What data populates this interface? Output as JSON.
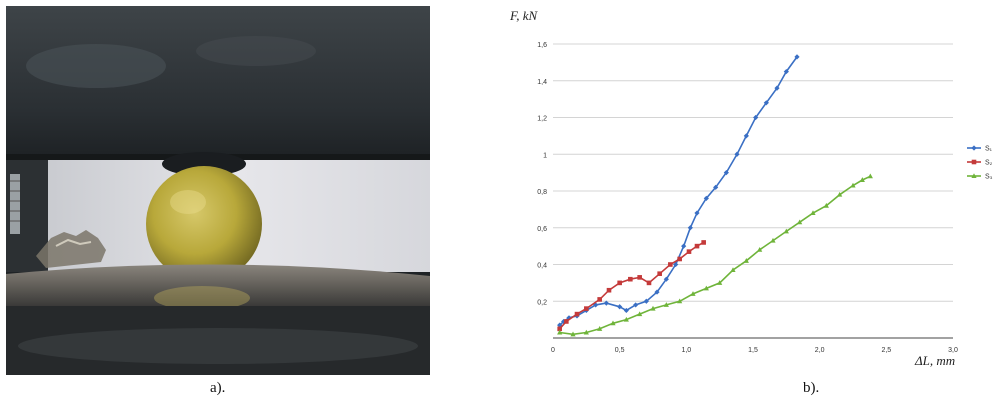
{
  "panel_labels": {
    "a": "a).",
    "b": "b)."
  },
  "chart_data": {
    "type": "line",
    "ylabel": "F, kN",
    "xlabel": "ΔL, mm",
    "xlim": [
      0,
      3.0
    ],
    "ylim": [
      0,
      1.6
    ],
    "xticks": [
      0,
      0.5,
      1.0,
      1.5,
      2.0,
      2.5,
      3.0
    ],
    "xtick_labels": [
      "0",
      "0,5",
      "1,0",
      "1,5",
      "2,0",
      "2,5",
      "3,0"
    ],
    "yticks": [
      0.2,
      0.4,
      0.6,
      0.8,
      1.0,
      1.2,
      1.4,
      1.6
    ],
    "ytick_labels": [
      "0,2",
      "0,4",
      "0,6",
      "0,8",
      "1",
      "1,2",
      "1,4",
      "1,6"
    ],
    "grid": "horizontal",
    "legend_position": "right",
    "series": [
      {
        "name": "S₁",
        "color": "#3a6fc4",
        "marker": "diamond",
        "points": [
          [
            0.05,
            0.07
          ],
          [
            0.08,
            0.09
          ],
          [
            0.12,
            0.11
          ],
          [
            0.18,
            0.12
          ],
          [
            0.25,
            0.15
          ],
          [
            0.32,
            0.18
          ],
          [
            0.4,
            0.19
          ],
          [
            0.5,
            0.17
          ],
          [
            0.55,
            0.15
          ],
          [
            0.62,
            0.18
          ],
          [
            0.7,
            0.2
          ],
          [
            0.78,
            0.25
          ],
          [
            0.85,
            0.32
          ],
          [
            0.92,
            0.4
          ],
          [
            0.98,
            0.5
          ],
          [
            1.03,
            0.6
          ],
          [
            1.08,
            0.68
          ],
          [
            1.15,
            0.76
          ],
          [
            1.22,
            0.82
          ],
          [
            1.3,
            0.9
          ],
          [
            1.38,
            1.0
          ],
          [
            1.45,
            1.1
          ],
          [
            1.52,
            1.2
          ],
          [
            1.6,
            1.28
          ],
          [
            1.68,
            1.36
          ],
          [
            1.75,
            1.45
          ],
          [
            1.83,
            1.53
          ]
        ]
      },
      {
        "name": "S₂",
        "color": "#c43a3a",
        "marker": "square",
        "points": [
          [
            0.05,
            0.05
          ],
          [
            0.1,
            0.09
          ],
          [
            0.18,
            0.13
          ],
          [
            0.25,
            0.16
          ],
          [
            0.35,
            0.21
          ],
          [
            0.42,
            0.26
          ],
          [
            0.5,
            0.3
          ],
          [
            0.58,
            0.32
          ],
          [
            0.65,
            0.33
          ],
          [
            0.72,
            0.3
          ],
          [
            0.8,
            0.35
          ],
          [
            0.88,
            0.4
          ],
          [
            0.95,
            0.43
          ],
          [
            1.02,
            0.47
          ],
          [
            1.08,
            0.5
          ],
          [
            1.13,
            0.52
          ]
        ]
      },
      {
        "name": "S₃",
        "color": "#6fb43a",
        "marker": "triangle",
        "points": [
          [
            0.05,
            0.03
          ],
          [
            0.15,
            0.02
          ],
          [
            0.25,
            0.03
          ],
          [
            0.35,
            0.05
          ],
          [
            0.45,
            0.08
          ],
          [
            0.55,
            0.1
          ],
          [
            0.65,
            0.13
          ],
          [
            0.75,
            0.16
          ],
          [
            0.85,
            0.18
          ],
          [
            0.95,
            0.2
          ],
          [
            1.05,
            0.24
          ],
          [
            1.15,
            0.27
          ],
          [
            1.25,
            0.3
          ],
          [
            1.35,
            0.37
          ],
          [
            1.45,
            0.42
          ],
          [
            1.55,
            0.48
          ],
          [
            1.65,
            0.53
          ],
          [
            1.75,
            0.58
          ],
          [
            1.85,
            0.63
          ],
          [
            1.95,
            0.68
          ],
          [
            2.05,
            0.72
          ],
          [
            2.15,
            0.78
          ],
          [
            2.25,
            0.83
          ],
          [
            2.32,
            0.86
          ],
          [
            2.38,
            0.88
          ]
        ]
      }
    ]
  }
}
